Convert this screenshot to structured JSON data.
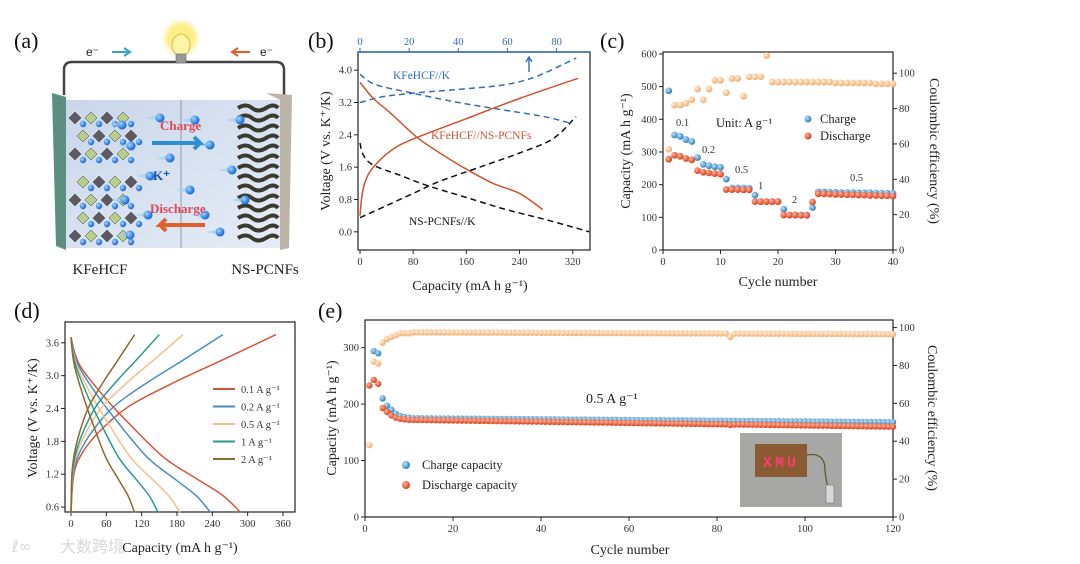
{
  "figure": {
    "panel_labels": {
      "a": "(a)",
      "b": "(b)",
      "c": "(c)",
      "d": "(d)",
      "e": "(e)"
    },
    "watermark": "大数跨境"
  },
  "schematic": {
    "electron_left": "e⁻",
    "electron_right": "e⁻",
    "charge": "Charge",
    "ion": "K⁺",
    "discharge": "Discharge",
    "cathode": "KFeHCF",
    "anode": "NS-PCNFs"
  },
  "chart_data": [
    {
      "panel": "b",
      "type": "line",
      "xlabel": "Capacity (mA h g⁻¹)",
      "ylabel": "Voltage (V vs. K⁺/K)",
      "xlim": [
        -3,
        346
      ],
      "ylim": [
        -0.45,
        4.45
      ],
      "xticks": [
        0,
        80,
        160,
        240,
        320
      ],
      "yticks": [
        0.0,
        0.8,
        1.6,
        2.4,
        3.2,
        4.0
      ],
      "top_xlim": [
        -0.8,
        93.6
      ],
      "top_xticks": [
        0,
        20,
        40,
        60,
        80
      ],
      "top_axis_color": "#2f6db5",
      "series": [
        {
          "name": "KFeHCF//K",
          "axis": "top",
          "style": "dashed",
          "color": "#2f6db5",
          "curves": [
            [
              [
                0,
                3.2
              ],
              [
                10,
                3.35
              ],
              [
                25,
                3.45
              ],
              [
                45,
                3.55
              ],
              [
                60,
                3.65
              ],
              [
                72,
                3.85
              ],
              [
                88,
                4.3
              ]
            ],
            [
              [
                0,
                3.9
              ],
              [
                6,
                3.65
              ],
              [
                20,
                3.45
              ],
              [
                40,
                3.2
              ],
              [
                60,
                3.0
              ],
              [
                75,
                2.85
              ],
              [
                85,
                2.7
              ]
            ]
          ]
        },
        {
          "name": "KFeHCF//NS-PCNFs",
          "axis": "bottom",
          "style": "solid",
          "color": "#d0532f",
          "curves": [
            [
              [
                0,
                0.4
              ],
              [
                3,
                0.9
              ],
              [
                8,
                1.25
              ],
              [
                20,
                1.6
              ],
              [
                50,
                2.05
              ],
              [
                85,
                2.33
              ],
              [
                160,
                2.8
              ],
              [
                240,
                3.3
              ],
              [
                328,
                3.8
              ]
            ],
            [
              [
                0,
                3.7
              ],
              [
                20,
                3.3
              ],
              [
                45,
                2.95
              ],
              [
                85,
                2.35
              ],
              [
                120,
                1.95
              ],
              [
                160,
                1.55
              ],
              [
                200,
                1.2
              ],
              [
                240,
                0.95
              ],
              [
                275,
                0.55
              ]
            ]
          ]
        },
        {
          "name": "NS-PCNFs//K",
          "axis": "bottom",
          "style": "dashed",
          "color": "#111111",
          "curves": [
            [
              [
                0,
                2.2
              ],
              [
                5,
                1.9
              ],
              [
                20,
                1.65
              ],
              [
                60,
                1.4
              ],
              [
                100,
                1.15
              ],
              [
                160,
                0.85
              ],
              [
                220,
                0.55
              ],
              [
                280,
                0.3
              ],
              [
                345,
                0.0
              ]
            ],
            [
              [
                0,
                0.35
              ],
              [
                40,
                0.65
              ],
              [
                80,
                0.95
              ],
              [
                120,
                1.25
              ],
              [
                180,
                1.6
              ],
              [
                240,
                1.95
              ],
              [
                290,
                2.3
              ],
              [
                325,
                2.85
              ]
            ]
          ]
        }
      ]
    },
    {
      "panel": "c",
      "type": "scatter",
      "xlabel": "Cycle number",
      "ylabel": "Capacity (mA h g⁻¹)",
      "ylabel_right": "Coulombic efficiency (%)",
      "xlim": [
        0,
        40
      ],
      "ylim": [
        0,
        606
      ],
      "ylim_right": [
        0,
        112
      ],
      "xticks": [
        0,
        10,
        20,
        30,
        40
      ],
      "yticks": [
        0,
        100,
        200,
        300,
        400,
        500,
        600
      ],
      "yticks_right": [
        0,
        20,
        40,
        60,
        80,
        100
      ],
      "unit_note": "Unit: A g⁻¹",
      "rate_labels": [
        "0.1",
        "0.2",
        "0.5",
        "1",
        "2",
        "0.5"
      ],
      "legend": [
        "Charge",
        "Discharge"
      ],
      "colors": {
        "charge": "#3b8fc4",
        "discharge": "#e0502c",
        "ce": "#f4b57e"
      },
      "cycles": [
        1,
        2,
        3,
        4,
        5,
        6,
        7,
        8,
        9,
        10,
        11,
        12,
        13,
        14,
        15,
        16,
        17,
        18,
        19,
        20,
        21,
        22,
        23,
        24,
        25,
        26,
        27,
        28,
        29,
        30,
        31,
        32,
        33,
        34,
        35,
        36,
        37,
        38,
        39,
        40
      ],
      "charge": [
        487,
        352,
        348,
        338,
        332,
        283,
        262,
        258,
        255,
        253,
        217,
        190,
        190,
        190,
        189,
        168,
        148,
        148,
        148,
        148,
        125,
        107,
        107,
        107,
        107,
        130,
        178,
        178,
        177,
        177,
        176,
        176,
        176,
        175,
        175,
        175,
        174,
        174,
        174,
        173
      ],
      "discharge": [
        278,
        290,
        287,
        280,
        276,
        243,
        238,
        236,
        234,
        232,
        185,
        185,
        185,
        184,
        184,
        148,
        148,
        148,
        148,
        148,
        107,
        107,
        107,
        106,
        106,
        147,
        172,
        172,
        171,
        170,
        170,
        169,
        169,
        168,
        168,
        167,
        167,
        166,
        166,
        165
      ],
      "ce": [
        57,
        82,
        82,
        83,
        85,
        91,
        85,
        91,
        96,
        96,
        89,
        97,
        97,
        87,
        98,
        98,
        98,
        110,
        95,
        95,
        95,
        95,
        95,
        95,
        95,
        95,
        95,
        95,
        95,
        94.5,
        94.5,
        94.5,
        94.5,
        94.5,
        94.5,
        94.5,
        94,
        94,
        94,
        94
      ]
    },
    {
      "panel": "d",
      "type": "line",
      "xlabel": "Capacity (mA h g⁻¹)",
      "ylabel": "Voltage (V vs. K⁺/K)",
      "xlim": [
        -10.2,
        380.4
      ],
      "ylim": [
        0.51,
        3.98
      ],
      "xticks": [
        0,
        60,
        120,
        180,
        240,
        300,
        360
      ],
      "yticks": [
        0.6,
        1.2,
        1.8,
        2.4,
        3.0,
        3.6
      ],
      "charge_profile": [
        [
          0,
          0.5
        ],
        [
          0.014,
          1.2
        ],
        [
          0.057,
          1.6
        ],
        [
          0.144,
          2.0
        ],
        [
          0.287,
          2.45
        ],
        [
          0.517,
          2.9
        ],
        [
          0.747,
          3.3
        ],
        [
          1,
          3.75
        ]
      ],
      "discharge_profile": [
        [
          0,
          3.7
        ],
        [
          0.05,
          3.2
        ],
        [
          0.2,
          2.6
        ],
        [
          0.35,
          2.1
        ],
        [
          0.55,
          1.5
        ],
        [
          0.75,
          1.1
        ],
        [
          0.9,
          0.8
        ],
        [
          1,
          0.5
        ]
      ],
      "series": [
        {
          "name": "0.1 A g⁻¹",
          "color": "#d9533a",
          "charge_capacity": 348,
          "discharge_capacity": 288
        },
        {
          "name": "0.2 A g⁻¹",
          "color": "#4a8cc0",
          "charge_capacity": 258,
          "discharge_capacity": 237
        },
        {
          "name": "0.5 A g⁻¹",
          "color": "#f2c08e",
          "charge_capacity": 190,
          "discharge_capacity": 185
        },
        {
          "name": "1 A g⁻¹",
          "color": "#2b9a8e",
          "charge_capacity": 150,
          "discharge_capacity": 148
        },
        {
          "name": "2 A g⁻¹",
          "color": "#8a6a2e",
          "charge_capacity": 108,
          "discharge_capacity": 108
        }
      ]
    },
    {
      "panel": "e",
      "type": "scatter",
      "xlabel": "Cycle number",
      "ylabel": "Capacity (mA h g⁻¹)",
      "ylabel_right": "Coulombic efficiency (%)",
      "xlim": [
        0,
        120
      ],
      "ylim": [
        0,
        349
      ],
      "ylim_right": [
        0,
        104
      ],
      "xticks": [
        0,
        20,
        40,
        60,
        80,
        100,
        120
      ],
      "yticks": [
        0,
        100,
        200,
        300
      ],
      "yticks_right": [
        0,
        20,
        40,
        60,
        80,
        100
      ],
      "rate_note": "0.5 A g⁻¹",
      "legend": [
        "Charge capacity",
        "Discharge capacity"
      ],
      "inset_photo_text": "XMU",
      "colors": {
        "charge": "#3b8fc4",
        "discharge": "#e0502c",
        "ce": "#f4b57e"
      },
      "early": {
        "cycles": [
          1,
          2,
          3,
          4,
          5,
          6,
          7,
          8,
          9,
          10
        ],
        "charge": [
          null,
          294,
          290,
          210,
          197,
          190,
          183,
          179,
          177,
          176
        ],
        "discharge": [
          233,
          243,
          236,
          193,
          186,
          180,
          176,
          174,
          173,
          172
        ],
        "ce": [
          38,
          82,
          81,
          92,
          94,
          95,
          96,
          97,
          97,
          97
        ]
      },
      "plateau": {
        "from_cycle": 11,
        "to_cycle": 120,
        "charge": [
          175,
          168
        ],
        "discharge": [
          172,
          160
        ],
        "ce": [
          97.5,
          96.5
        ]
      },
      "anomalies": [
        {
          "cycle": 83,
          "discharge": 163,
          "ce": 95
        }
      ]
    }
  ]
}
